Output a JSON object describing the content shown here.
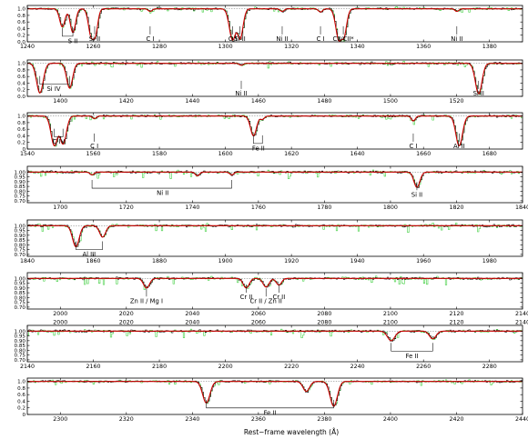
{
  "chart_data": {
    "type": "line",
    "xlabel": "Rest−frame wavelength (Å)",
    "ylabel": "",
    "series": [
      {
        "name": "",
        "role": "flux",
        "color": "#000000"
      },
      {
        "name": "",
        "role": "error",
        "color": "#33cc33"
      },
      {
        "name": "",
        "role": "fit",
        "color": "#cc0000"
      }
    ],
    "panels": [
      {
        "xlim": [
          1240,
          1390
        ],
        "ylim": [
          0,
          1.1
        ],
        "xticks": [
          1240,
          1260,
          1280,
          1300,
          1320,
          1340,
          1360,
          1380
        ],
        "yticks": [
          0,
          0.2,
          0.4,
          0.6,
          0.8,
          1.0
        ],
        "ytick_labels": [
          "0.0",
          "0.2",
          "0.4",
          "0.6",
          "0.8",
          "1.0"
        ],
        "absorption": [
          {
            "x": 1250.6,
            "depth": 0.55,
            "width": 0.8
          },
          {
            "x": 1253.8,
            "depth": 0.72,
            "width": 0.8
          },
          {
            "x": 1259.5,
            "depth": 0.85,
            "width": 0.9
          },
          {
            "x": 1260.4,
            "depth": 0.8,
            "width": 0.8
          },
          {
            "x": 1277.2,
            "depth": 0.08,
            "width": 0.6
          },
          {
            "x": 1302.2,
            "depth": 0.95,
            "width": 1.0
          },
          {
            "x": 1304.4,
            "depth": 0.92,
            "width": 0.9
          },
          {
            "x": 1317.2,
            "depth": 0.08,
            "width": 0.6
          },
          {
            "x": 1328.8,
            "depth": 0.1,
            "width": 0.6
          },
          {
            "x": 1334.5,
            "depth": 0.97,
            "width": 1.0
          },
          {
            "x": 1335.7,
            "depth": 0.85,
            "width": 0.9
          },
          {
            "x": 1370.1,
            "depth": 0.08,
            "width": 0.6
          }
        ],
        "annotations": [
          {
            "label": "S II",
            "x": 1253.8,
            "bracket": [
              1250.6,
              1253.8
            ],
            "y": 0.25
          },
          {
            "label": "Si II",
            "x": 1260.4,
            "y": 0.25
          },
          {
            "label": "C I",
            "x": 1277.2,
            "y": 0.25
          },
          {
            "label": "O I",
            "x": 1302.2,
            "y": 0.25
          },
          {
            "label": "Si II",
            "x": 1304.4,
            "y": 0.25
          },
          {
            "label": "Ni II",
            "x": 1317.2,
            "y": 0.25
          },
          {
            "label": "C I",
            "x": 1328.8,
            "y": 0.25
          },
          {
            "label": "CII/CII*",
            "x": 1335.7,
            "y": 0.25
          },
          {
            "label": "Ni II",
            "x": 1370.1,
            "y": 0.25
          }
        ]
      },
      {
        "xlim": [
          1390,
          1540
        ],
        "ylim": [
          0,
          1.1
        ],
        "xticks": [
          1400,
          1420,
          1440,
          1460,
          1480,
          1500,
          1520
        ],
        "yticks": [
          0,
          0.2,
          0.4,
          0.6,
          0.8,
          1.0
        ],
        "ytick_labels": [
          "0.0",
          "0.2",
          "0.4",
          "0.6",
          "0.8",
          "1.0"
        ],
        "absorption": [
          {
            "x": 1393.8,
            "depth": 0.9,
            "width": 1.0
          },
          {
            "x": 1402.8,
            "depth": 0.75,
            "width": 0.9
          },
          {
            "x": 1454.8,
            "depth": 0.06,
            "width": 0.6
          },
          {
            "x": 1526.7,
            "depth": 0.92,
            "width": 1.0
          }
        ],
        "annotations": [
          {
            "label": "Si IV",
            "x": 1398,
            "bracket": [
              1393.8,
              1402.8
            ],
            "y": 0.45
          },
          {
            "label": "Ni II",
            "x": 1454.8,
            "y": 0.25
          },
          {
            "label": "Si II",
            "x": 1526.7,
            "y": 0.25
          }
        ]
      },
      {
        "xlim": [
          1540,
          1690
        ],
        "ylim": [
          0,
          1.1
        ],
        "xticks": [
          1540,
          1560,
          1580,
          1600,
          1620,
          1640,
          1660,
          1680
        ],
        "yticks": [
          0,
          0.2,
          0.4,
          0.6,
          0.8,
          1.0
        ],
        "ytick_labels": [
          "0",
          "0.2",
          "0.4",
          "0.6",
          "0.8",
          "1.0"
        ],
        "absorption": [
          {
            "x": 1548.2,
            "depth": 0.9,
            "width": 1.0
          },
          {
            "x": 1550.8,
            "depth": 0.85,
            "width": 1.0
          },
          {
            "x": 1560.3,
            "depth": 0.08,
            "width": 0.6
          },
          {
            "x": 1608.5,
            "depth": 0.6,
            "width": 0.9
          },
          {
            "x": 1611.2,
            "depth": 0.1,
            "width": 0.6
          },
          {
            "x": 1656.9,
            "depth": 0.15,
            "width": 0.6
          },
          {
            "x": 1670.8,
            "depth": 0.9,
            "width": 1.0
          }
        ],
        "annotations": [
          {
            "label": "C IV",
            "x": 1549.5,
            "bracket": [
              1548.2,
              1550.8
            ],
            "y": 0.45
          },
          {
            "label": "C I",
            "x": 1560.3,
            "y": 0.25
          },
          {
            "label": "Fe II",
            "x": 1610,
            "bracket": [
              1608.5,
              1611.2
            ],
            "y": 0.25
          },
          {
            "label": "C I",
            "x": 1656.9,
            "y": 0.25
          },
          {
            "label": "Al II",
            "x": 1670.8,
            "y": 0.25
          }
        ]
      },
      {
        "xlim": [
          1690,
          1840
        ],
        "ylim": [
          0.68,
          1.06
        ],
        "xticks": [
          1700,
          1720,
          1740,
          1760,
          1780,
          1800,
          1820,
          1840
        ],
        "yticks": [
          0.7,
          0.75,
          0.8,
          0.85,
          0.9,
          0.95,
          1.0
        ],
        "ytick_labels": [
          "0.70",
          "0.75",
          "0.80",
          "0.85",
          "0.90",
          "0.95",
          "1.00"
        ],
        "absorption": [
          {
            "x": 1709.6,
            "depth": 0.03,
            "width": 0.6
          },
          {
            "x": 1741.5,
            "depth": 0.04,
            "width": 0.6
          },
          {
            "x": 1751.9,
            "depth": 0.03,
            "width": 0.6
          },
          {
            "x": 1808.0,
            "depth": 0.16,
            "width": 0.9
          }
        ],
        "annotations": [
          {
            "label": "Ni II",
            "x": 1731,
            "bracket": [
              1709.6,
              1751.9
            ],
            "y": 0.86
          },
          {
            "label": "Si II",
            "x": 1808.0,
            "y": 0.82
          }
        ]
      },
      {
        "xlim": [
          1840,
          1990
        ],
        "ylim": [
          0.68,
          1.06
        ],
        "xticks": [
          1840,
          1860,
          1880,
          1900,
          1920,
          1940,
          1960,
          1980
        ],
        "yticks": [
          0.7,
          0.75,
          0.8,
          0.85,
          0.9,
          0.95,
          1.0
        ],
        "ytick_labels": [
          "0.70",
          "0.75",
          "0.80",
          "0.85",
          "0.90",
          "0.95",
          "1.00"
        ],
        "absorption": [
          {
            "x": 1854.7,
            "depth": 0.22,
            "width": 1.0
          },
          {
            "x": 1862.8,
            "depth": 0.12,
            "width": 0.9
          }
        ],
        "annotations": [
          {
            "label": "Al III",
            "x": 1858.7,
            "bracket": [
              1854.7,
              1862.8
            ],
            "y": 0.78
          }
        ]
      },
      {
        "xlim": [
          1990,
          2140
        ],
        "ylim": [
          0.68,
          1.06
        ],
        "xticks": [
          2000,
          2020,
          2040,
          2060,
          2080,
          2100,
          2120,
          2140
        ],
        "yticks": [
          0.7,
          0.75,
          0.8,
          0.85,
          0.9,
          0.95,
          1.0
        ],
        "ytick_labels": [
          "0.70",
          "0.75",
          "0.80",
          "0.85",
          "0.90",
          "0.95",
          "1.00"
        ],
        "absorption": [
          {
            "x": 2026.1,
            "depth": 0.1,
            "width": 0.9
          },
          {
            "x": 2056.3,
            "depth": 0.1,
            "width": 0.9
          },
          {
            "x": 2062.3,
            "depth": 0.09,
            "width": 0.9
          },
          {
            "x": 2066.2,
            "depth": 0.07,
            "width": 0.8
          }
        ],
        "annotations": [
          {
            "label": "Zn II / Mg I",
            "x": 2026.1,
            "y": 0.82
          },
          {
            "label": "Cr II",
            "x": 2056.3,
            "y": 0.86
          },
          {
            "label": "Cr II / Zn II",
            "x": 2062.3,
            "y": 0.82
          },
          {
            "label": "Cr II",
            "x": 2066.2,
            "y": 0.86
          }
        ]
      },
      {
        "xlim": [
          1990,
          2140
        ],
        "ylim": [
          0.68,
          1.06
        ],
        "xticks": [
          2140,
          2160,
          2180,
          2200,
          2220,
          2240,
          2260,
          2280
        ],
        "xtick_positions": [
          1990,
          2010,
          2030,
          2050,
          2070,
          2090,
          2110,
          2130
        ],
        "top_xticks": [
          2000,
          2020,
          2040,
          2060,
          2080,
          2100,
          2120,
          2140
        ],
        "yticks": [
          0.7,
          0.75,
          0.8,
          0.85,
          0.9,
          0.95,
          1.0
        ],
        "ytick_labels": [
          "0.70",
          "0.75",
          "0.80",
          "0.85",
          "0.90",
          "0.95",
          "1.00"
        ],
        "absorption": [
          {
            "x": 2100.2,
            "depth": 0.1,
            "width": 1.1
          },
          {
            "x": 2112.8,
            "depth": 0.08,
            "width": 1.0
          }
        ],
        "annotations": [
          {
            "label": "Fe II",
            "x": 2106.5,
            "bracket": [
              2100.2,
              2112.8
            ],
            "y": 0.82
          }
        ]
      },
      {
        "xlim": [
          2290,
          2440
        ],
        "ylim": [
          0,
          1.1
        ],
        "xticks": [
          2300,
          2320,
          2340,
          2360,
          2380,
          2400,
          2420,
          2440
        ],
        "yticks": [
          0,
          0.2,
          0.4,
          0.6,
          0.8,
          1.0
        ],
        "ytick_labels": [
          "0",
          "0.2",
          "0.4",
          "0.6",
          "0.8",
          "1.0"
        ],
        "absorption": [
          {
            "x": 2344.2,
            "depth": 0.65,
            "width": 1.1
          },
          {
            "x": 2374.5,
            "depth": 0.3,
            "width": 1.0
          },
          {
            "x": 2382.8,
            "depth": 0.75,
            "width": 1.1
          }
        ],
        "annotations": [
          {
            "label": "Fe II",
            "x": 2363.5,
            "bracket": [
              2344.2,
              2382.8
            ],
            "y": 0.28
          }
        ]
      }
    ]
  }
}
